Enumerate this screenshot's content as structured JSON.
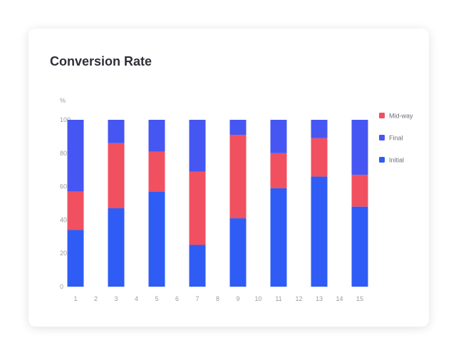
{
  "card": {
    "title": "Conversion Rate"
  },
  "chart_data": {
    "type": "bar",
    "stacked": true,
    "title": "Conversion Rate",
    "xlabel": "",
    "ylabel": "%",
    "ylim": [
      0,
      100
    ],
    "yticks": [
      0,
      20,
      40,
      60,
      80,
      100
    ],
    "xticks": [
      1,
      2,
      3,
      4,
      5,
      6,
      7,
      8,
      9,
      10,
      11,
      12,
      13,
      14,
      15
    ],
    "categories": [
      1,
      3,
      5,
      7,
      9,
      11,
      13,
      15
    ],
    "legend_position": "right",
    "grid": false,
    "series": [
      {
        "name": "Initial",
        "color": "#2f5cf5",
        "values": [
          34,
          47,
          57,
          25,
          41,
          59,
          66,
          48
        ]
      },
      {
        "name": "Mid-way",
        "color": "#f0505f",
        "values": [
          23,
          39,
          24,
          44,
          50,
          21,
          23,
          19
        ]
      },
      {
        "name": "Final",
        "color": "#4656f2",
        "values": [
          43,
          14,
          19,
          31,
          9,
          20,
          11,
          33
        ]
      }
    ]
  }
}
